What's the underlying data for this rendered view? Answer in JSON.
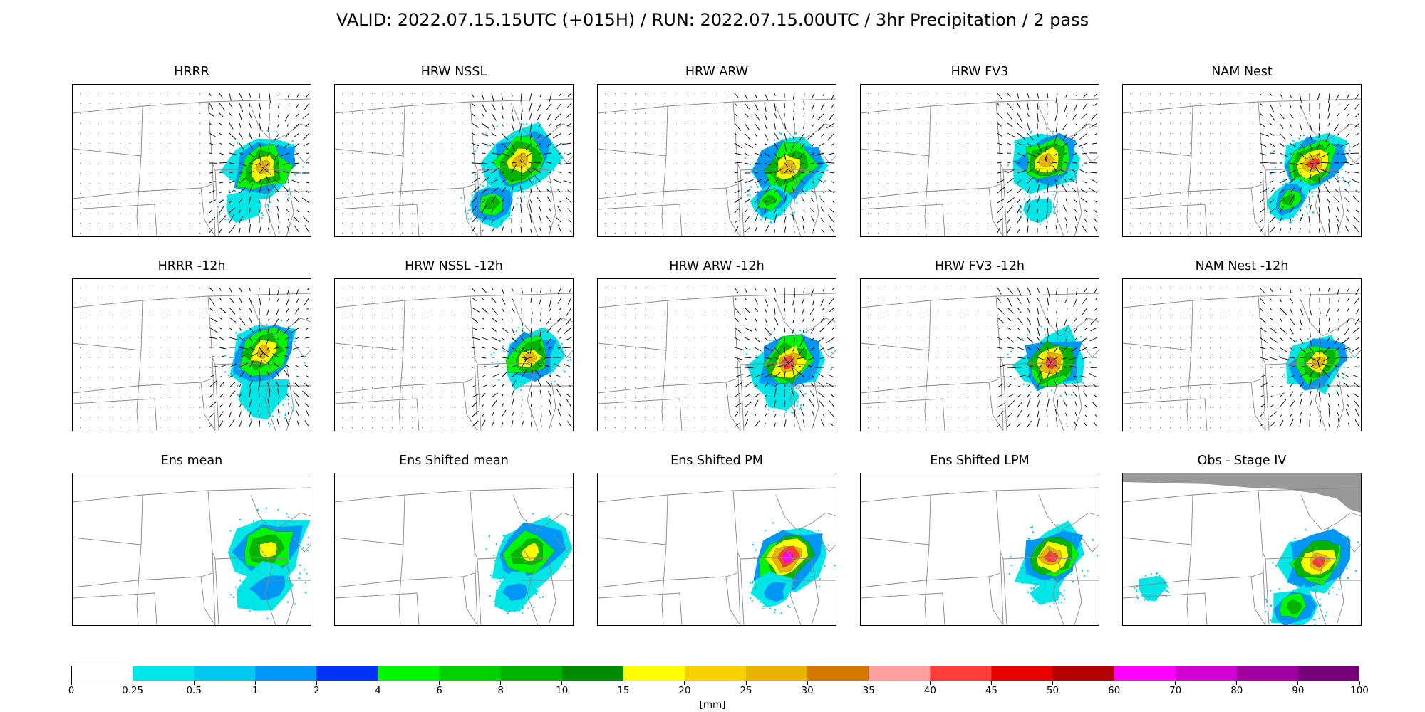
{
  "title": "VALID: 2022.07.15.15UTC (+015H) / RUN: 2022.07.15.00UTC / 3hr Precipitation / 2 pass",
  "chart_data": {
    "type": "heatmap",
    "title": "VALID: 2022.07.15.15UTC (+015H) / RUN: 2022.07.15.00UTC / 3hr Precipitation / 2 pass",
    "variable": "3hr Precipitation",
    "colorbar": {
      "label": "[mm]",
      "tick_labels": [
        "0",
        "0.25",
        "0.5",
        "1",
        "2",
        "4",
        "6",
        "8",
        "10",
        "15",
        "20",
        "25",
        "30",
        "35",
        "40",
        "45",
        "50",
        "60",
        "70",
        "80",
        "90",
        "100"
      ],
      "bounds": [
        0,
        0.25,
        0.5,
        1,
        2,
        4,
        6,
        8,
        10,
        15,
        20,
        25,
        30,
        35,
        40,
        45,
        50,
        60,
        70,
        80,
        90,
        100
      ],
      "colors": [
        "#ffffff",
        "#00e5e5",
        "#00c8f0",
        "#0096f5",
        "#0032f5",
        "#00f500",
        "#00d200",
        "#00b400",
        "#008c00",
        "#ffff00",
        "#f5d200",
        "#e6b400",
        "#d27800",
        "#ffa0a0",
        "#ff3c3c",
        "#e60000",
        "#b40000",
        "#ff00ff",
        "#d200d2",
        "#a000a0",
        "#780078"
      ]
    },
    "panels": [
      {
        "title": "HRRR",
        "wind_vectors": true,
        "masked_region": false,
        "blobs": [
          {
            "cx": 0.8,
            "cy": 0.55,
            "size": 0.9,
            "peak": "orange"
          },
          {
            "cx": 0.72,
            "cy": 0.8,
            "size": 0.5,
            "peak": "cyan"
          }
        ]
      },
      {
        "title": "HRW NSSL",
        "wind_vectors": true,
        "masked_region": false,
        "blobs": [
          {
            "cx": 0.78,
            "cy": 0.5,
            "size": 0.9,
            "peak": "orange"
          },
          {
            "cx": 0.66,
            "cy": 0.78,
            "size": 0.6,
            "peak": "green"
          }
        ]
      },
      {
        "title": "HRW ARW",
        "wind_vectors": true,
        "masked_region": false,
        "blobs": [
          {
            "cx": 0.8,
            "cy": 0.55,
            "size": 0.9,
            "peak": "orange"
          },
          {
            "cx": 0.72,
            "cy": 0.76,
            "size": 0.5,
            "peak": "green"
          }
        ]
      },
      {
        "title": "HRW FV3",
        "wind_vectors": true,
        "masked_region": false,
        "blobs": [
          {
            "cx": 0.78,
            "cy": 0.5,
            "size": 0.85,
            "peak": "orange"
          },
          {
            "cx": 0.74,
            "cy": 0.82,
            "size": 0.35,
            "peak": "cyan"
          }
        ]
      },
      {
        "title": "NAM Nest",
        "wind_vectors": true,
        "masked_region": false,
        "blobs": [
          {
            "cx": 0.8,
            "cy": 0.52,
            "size": 0.8,
            "peak": "red"
          },
          {
            "cx": 0.7,
            "cy": 0.76,
            "size": 0.5,
            "peak": "green"
          }
        ]
      },
      {
        "title": "HRRR -12h",
        "wind_vectors": true,
        "masked_region": false,
        "blobs": [
          {
            "cx": 0.8,
            "cy": 0.48,
            "size": 0.85,
            "peak": "orange"
          },
          {
            "cx": 0.8,
            "cy": 0.78,
            "size": 0.6,
            "peak": "cyan"
          }
        ]
      },
      {
        "title": "HRW NSSL -12h",
        "wind_vectors": true,
        "masked_region": false,
        "blobs": [
          {
            "cx": 0.82,
            "cy": 0.52,
            "size": 0.75,
            "peak": "orange"
          }
        ]
      },
      {
        "title": "HRW ARW -12h",
        "wind_vectors": true,
        "masked_region": false,
        "blobs": [
          {
            "cx": 0.8,
            "cy": 0.55,
            "size": 0.85,
            "peak": "red"
          },
          {
            "cx": 0.78,
            "cy": 0.78,
            "size": 0.4,
            "peak": "cyan"
          }
        ]
      },
      {
        "title": "HRW FV3 -12h",
        "wind_vectors": true,
        "masked_region": false,
        "blobs": [
          {
            "cx": 0.8,
            "cy": 0.55,
            "size": 0.85,
            "peak": "red"
          }
        ]
      },
      {
        "title": "NAM Nest -12h",
        "wind_vectors": true,
        "masked_region": false,
        "blobs": [
          {
            "cx": 0.82,
            "cy": 0.55,
            "size": 0.75,
            "peak": "orange"
          }
        ]
      },
      {
        "title": "Ens mean",
        "wind_vectors": false,
        "masked_region": false,
        "blobs": [
          {
            "cx": 0.82,
            "cy": 0.5,
            "size": 1.0,
            "peak": "yellow"
          },
          {
            "cx": 0.82,
            "cy": 0.75,
            "size": 0.7,
            "peak": "blue"
          }
        ]
      },
      {
        "title": "Ens Shifted mean",
        "wind_vectors": false,
        "masked_region": false,
        "blobs": [
          {
            "cx": 0.82,
            "cy": 0.52,
            "size": 0.9,
            "peak": "yellow"
          },
          {
            "cx": 0.76,
            "cy": 0.78,
            "size": 0.5,
            "peak": "blue"
          }
        ]
      },
      {
        "title": "Ens Shifted PM",
        "wind_vectors": false,
        "masked_region": false,
        "blobs": [
          {
            "cx": 0.8,
            "cy": 0.55,
            "size": 0.9,
            "peak": "magenta"
          },
          {
            "cx": 0.74,
            "cy": 0.78,
            "size": 0.5,
            "peak": "blue"
          }
        ]
      },
      {
        "title": "Ens Shifted LPM",
        "wind_vectors": false,
        "masked_region": false,
        "blobs": [
          {
            "cx": 0.8,
            "cy": 0.55,
            "size": 0.85,
            "peak": "red"
          },
          {
            "cx": 0.78,
            "cy": 0.78,
            "size": 0.35,
            "peak": "cyan"
          }
        ]
      },
      {
        "title": "Obs - Stage IV",
        "wind_vectors": false,
        "masked_region": true,
        "blobs": [
          {
            "cx": 0.82,
            "cy": 0.58,
            "size": 0.85,
            "peak": "red"
          },
          {
            "cx": 0.72,
            "cy": 0.88,
            "size": 0.6,
            "peak": "green"
          },
          {
            "cx": 0.12,
            "cy": 0.75,
            "size": 0.35,
            "peak": "cyan"
          }
        ]
      }
    ]
  }
}
